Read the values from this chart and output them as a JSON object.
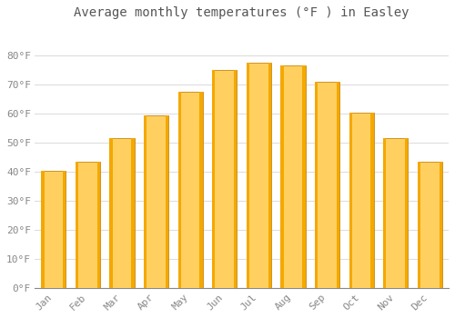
{
  "title": "Average monthly temperatures (°F ) in Easley",
  "months": [
    "Jan",
    "Feb",
    "Mar",
    "Apr",
    "May",
    "Jun",
    "Jul",
    "Aug",
    "Sep",
    "Oct",
    "Nov",
    "Dec"
  ],
  "values": [
    40.5,
    43.5,
    51.5,
    59.5,
    67.5,
    75.0,
    77.5,
    76.5,
    71.0,
    60.5,
    51.5,
    43.5
  ],
  "bar_color_light": "#FFD060",
  "bar_color_dark": "#F5A800",
  "bar_edge_color": "#C8850A",
  "ylim": [
    0,
    90
  ],
  "ytick_values": [
    0,
    10,
    20,
    30,
    40,
    50,
    60,
    70,
    80
  ],
  "ytick_labels": [
    "0°F",
    "10°F",
    "20°F",
    "30°F",
    "40°F",
    "50°F",
    "60°F",
    "70°F",
    "80°F"
  ],
  "background_color": "#FFFFFF",
  "grid_color": "#DDDDDD",
  "title_fontsize": 10,
  "tick_fontsize": 8,
  "tick_color": "#888888"
}
